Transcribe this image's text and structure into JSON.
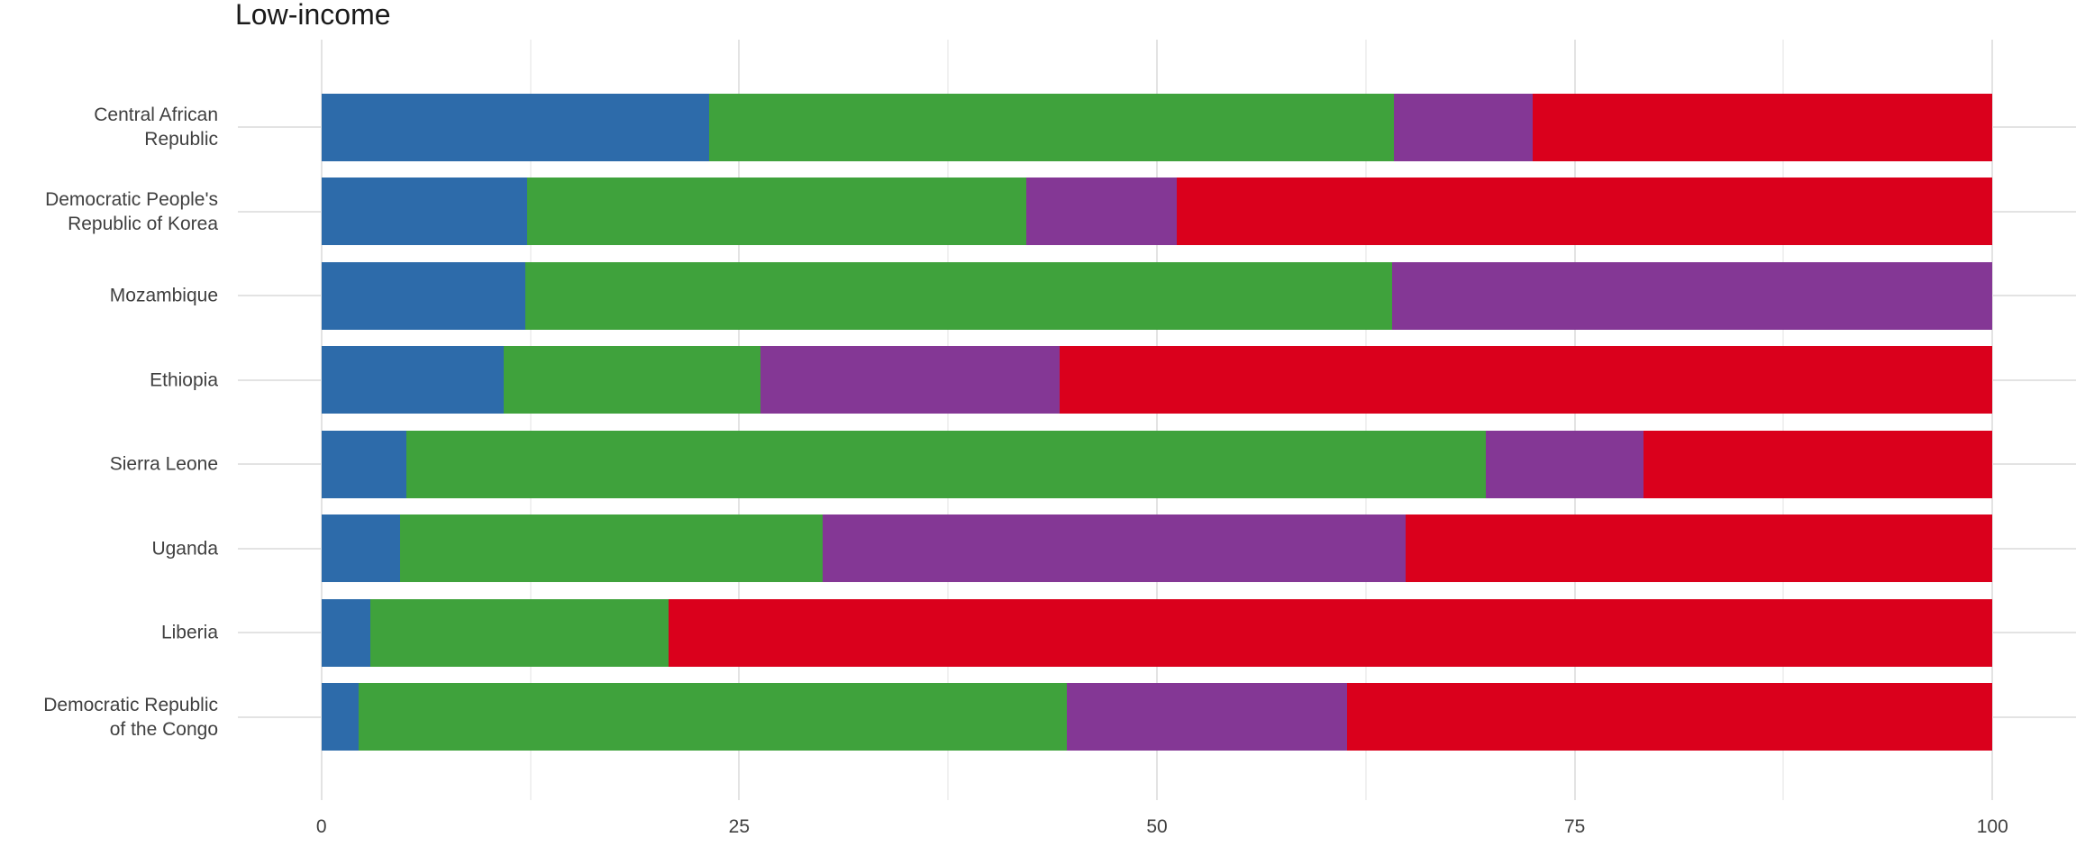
{
  "chart_data": {
    "type": "bar",
    "variant": "horizontal-stacked",
    "title": "Low-income",
    "categories": [
      "Central African\nRepublic",
      "Democratic People's\nRepublic of Korea",
      "Mozambique",
      "Ethiopia",
      "Sierra Leone",
      "Uganda",
      "Liberia",
      "Democratic Republic\nof the Congo"
    ],
    "series": [
      {
        "name": "blue-segment",
        "color": "#2D6BAA",
        "values": [
          23.2,
          12.3,
          12.2,
          10.9,
          5.1,
          4.7,
          2.9,
          2.2
        ]
      },
      {
        "name": "green-segment",
        "color": "#3FA23C",
        "values": [
          41.0,
          29.9,
          51.9,
          15.4,
          64.6,
          25.3,
          17.9,
          42.4
        ]
      },
      {
        "name": "purple-segment",
        "color": "#843795",
        "values": [
          8.3,
          9.0,
          35.9,
          17.9,
          9.4,
          34.9,
          0,
          16.8
        ]
      },
      {
        "name": "red-segment",
        "color": "#DA001C",
        "values": [
          27.5,
          48.8,
          0,
          55.8,
          20.9,
          35.1,
          79.2,
          38.6
        ]
      }
    ],
    "xlabel": "",
    "ylabel": "",
    "x_ticks": [
      0,
      25,
      50,
      75,
      100
    ],
    "x_minor_gridlines": [
      12.5,
      37.5,
      62.5,
      87.5
    ],
    "xlim": [
      0,
      100
    ],
    "legend": "none",
    "grid": "on"
  },
  "colors": {
    "title_text": "#1A1A1A",
    "axis_text": "#404040",
    "grid_major": "#E3E3E3",
    "grid_minor": "#F1F1F1",
    "background": "#FFFFFF"
  }
}
